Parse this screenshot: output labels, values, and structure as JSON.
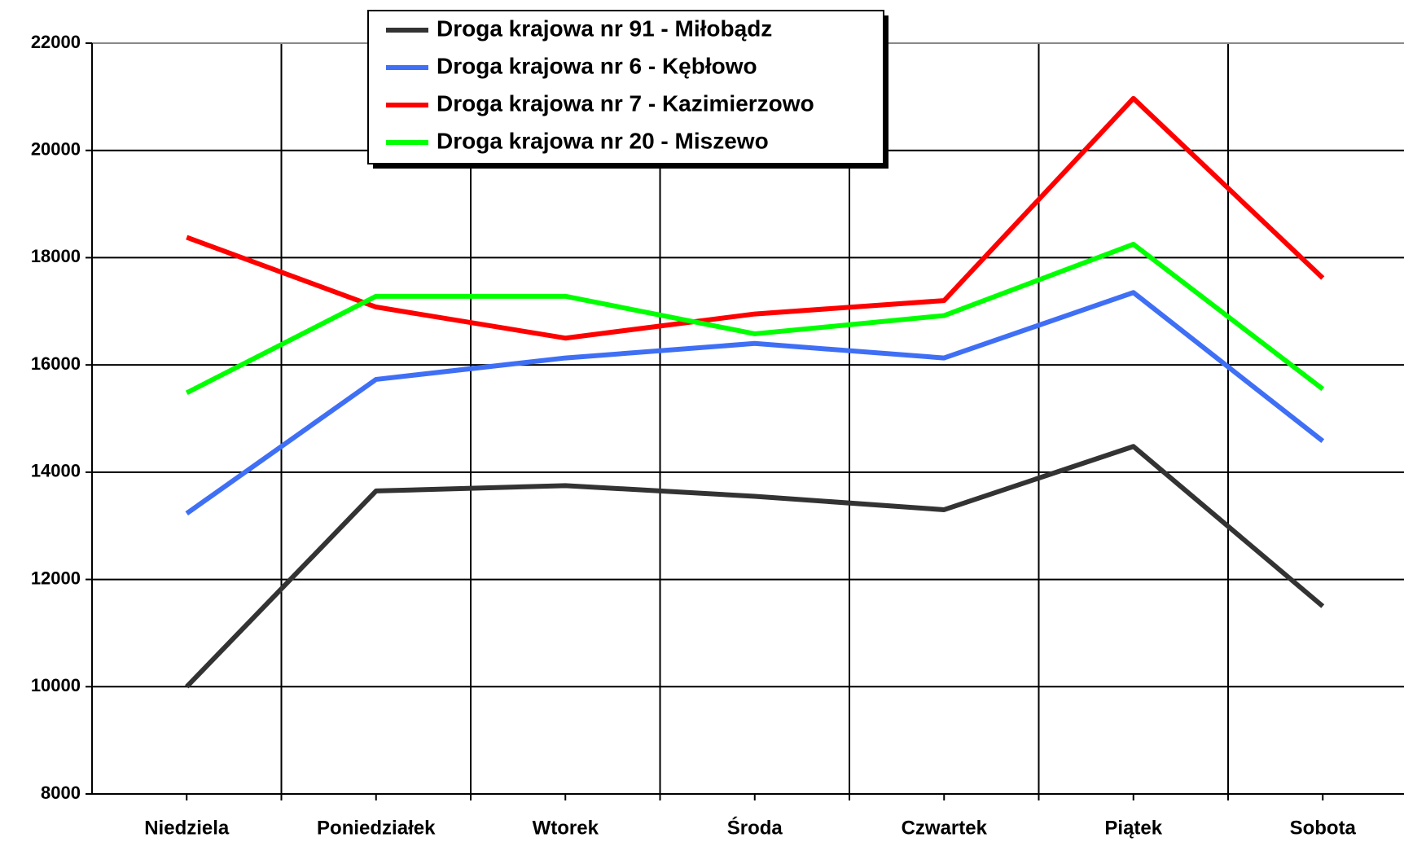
{
  "chart_data": {
    "type": "line",
    "categories": [
      "Niedziela",
      "Poniedziałek",
      "Wtorek",
      "Środa",
      "Czwartek",
      "Piątek",
      "Sobota"
    ],
    "series": [
      {
        "name": "Droga krajowa nr 91 - Miłobądz",
        "color": "#333333",
        "values": [
          10000,
          13650,
          13750,
          13550,
          13300,
          14480,
          11500
        ]
      },
      {
        "name": "Droga krajowa nr 6 - Kębłowo",
        "color": "#3f6ff5",
        "values": [
          13230,
          15730,
          16130,
          16400,
          16130,
          17350,
          14580
        ]
      },
      {
        "name": "Droga krajowa nr 7 - Kazimierzowo",
        "color": "#ff0000",
        "values": [
          18380,
          17080,
          16500,
          16950,
          17200,
          20970,
          17620
        ]
      },
      {
        "name": "Droga krajowa nr 20 - Miszewo",
        "color": "#00ff00",
        "values": [
          15480,
          17280,
          17280,
          16580,
          16920,
          18250,
          15550
        ]
      }
    ],
    "ylim": [
      8000,
      22000
    ],
    "yticks": [
      8000,
      10000,
      12000,
      14000,
      16000,
      18000,
      20000,
      22000
    ],
    "grid": true,
    "legend": "top"
  }
}
